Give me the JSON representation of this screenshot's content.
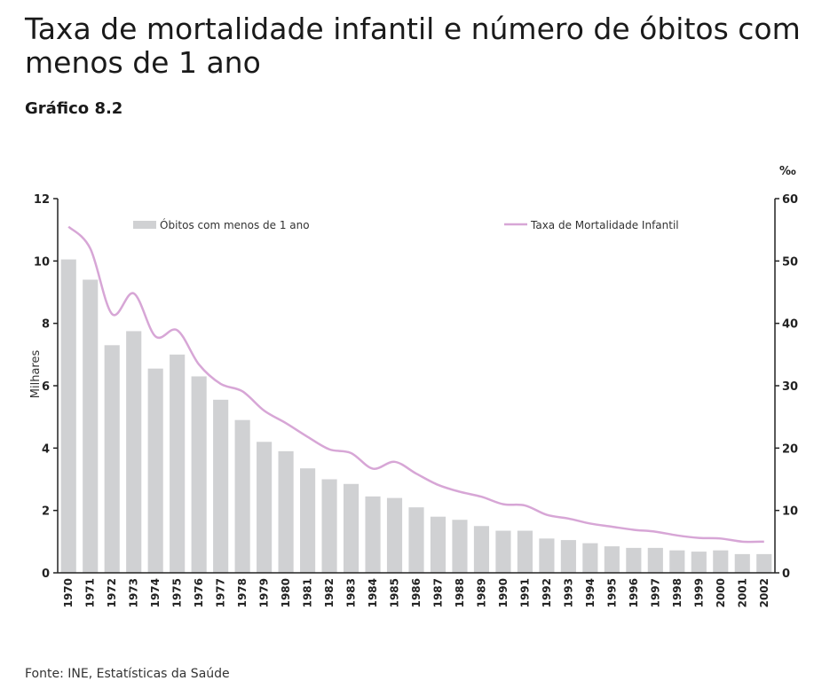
{
  "header": {
    "title": "Taxa de mortalidade infantil e número de óbitos com menos de 1 ano",
    "subtitle": "Gráfico 8.2"
  },
  "footer": {
    "source": "Fonte: INE, Estatísticas da Saúde"
  },
  "colors": {
    "bars": "#d0d1d3",
    "line": "#d7a6d6",
    "text": "#1a1a1a"
  },
  "chart_data": {
    "type": "bar",
    "categories": [
      "1970",
      "1971",
      "1972",
      "1973",
      "1974",
      "1975",
      "1976",
      "1977",
      "1978",
      "1979",
      "1980",
      "1981",
      "1982",
      "1983",
      "1984",
      "1985",
      "1986",
      "1987",
      "1988",
      "1989",
      "1990",
      "1991",
      "1992",
      "1993",
      "1994",
      "1995",
      "1996",
      "1997",
      "1998",
      "1999",
      "2000",
      "2001",
      "2002"
    ],
    "series": [
      {
        "name": "Óbitos com menos de 1 ano",
        "type": "bar",
        "axis": "left",
        "values": [
          10.05,
          9.4,
          7.3,
          7.75,
          6.55,
          7.0,
          6.3,
          5.55,
          4.9,
          4.2,
          3.9,
          3.35,
          3.0,
          2.85,
          2.45,
          2.4,
          2.1,
          1.8,
          1.7,
          1.5,
          1.35,
          1.35,
          1.1,
          1.05,
          0.95,
          0.85,
          0.8,
          0.8,
          0.72,
          0.68,
          0.72,
          0.6,
          0.6
        ]
      },
      {
        "name": "Taxa de Mortalidade Infantil",
        "type": "line",
        "axis": "right",
        "values": [
          55.5,
          52.0,
          41.5,
          44.8,
          37.9,
          38.9,
          33.4,
          30.3,
          29.1,
          26.0,
          24.0,
          21.8,
          19.8,
          19.2,
          16.7,
          17.8,
          15.9,
          14.1,
          13.0,
          12.2,
          11.0,
          10.8,
          9.3,
          8.7,
          7.9,
          7.4,
          6.9,
          6.6,
          6.0,
          5.6,
          5.5,
          5.0,
          5.0
        ]
      }
    ],
    "ylabel": "Milhares",
    "ylabel_right": "‰",
    "ylim": [
      0,
      12
    ],
    "y_ticks": [
      "0",
      "2",
      "4",
      "6",
      "8",
      "10",
      "12"
    ],
    "ylim_right": [
      0,
      60
    ],
    "y_ticks_right": [
      "0",
      "10",
      "20",
      "30",
      "40",
      "50",
      "60"
    ],
    "legend": "top",
    "grid": false
  }
}
